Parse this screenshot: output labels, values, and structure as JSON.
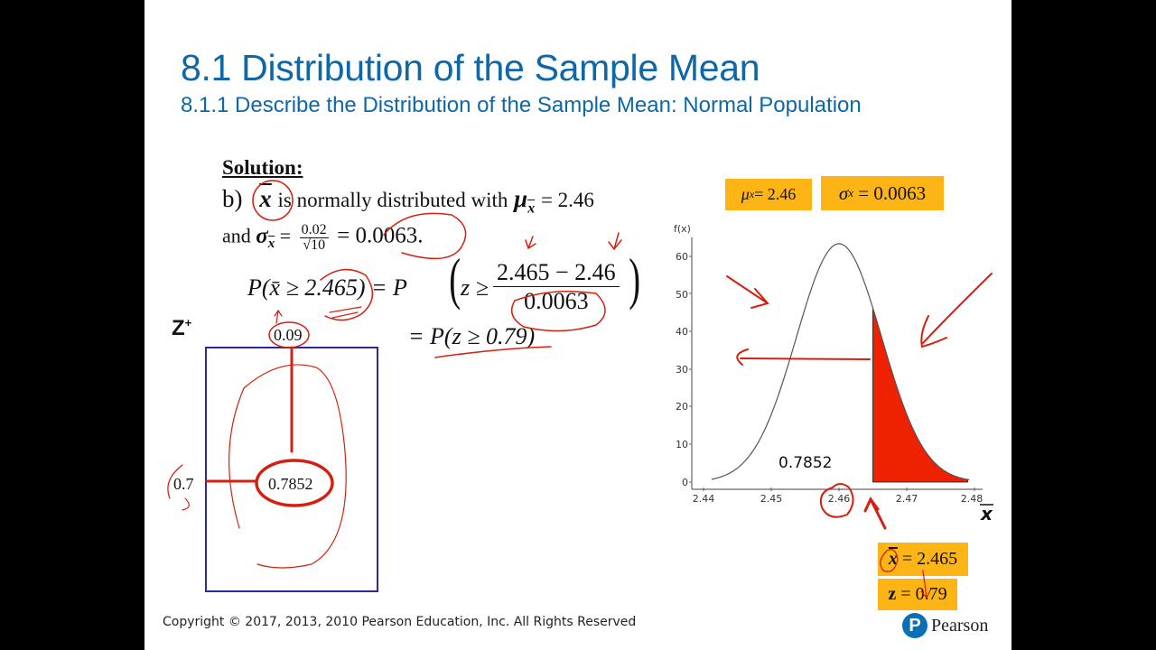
{
  "slide": {
    "title": "8.1 Distribution of the Sample Mean",
    "subtitle": "8.1.1 Describe the Distribution of the Sample Mean: Normal Population",
    "copyright": "Copyright © 2017, 2013, 2010 Pearson Education, Inc. All Rights Reserved",
    "brand": "Pearson",
    "brand_logo_letter": "P",
    "colors": {
      "title": "#0e67a6",
      "badge": "#fdb515",
      "shade": "#ee2200",
      "ink": "#d42010",
      "table_border": "#2b2aa0"
    }
  },
  "solution": {
    "heading": "Solution:",
    "part_label": "b)",
    "xbar": "x",
    "text1": "is normally distributed with",
    "mu_sym": "μ",
    "mu_sub": "x",
    "mu_value": "= 2.46",
    "and_text": "and",
    "sigma_sym": "σ",
    "sigma_sub": "x",
    "sigma_eq": "=",
    "frac_num": "0.02",
    "frac_den": "√10",
    "sigma_value": "= 0.0063.",
    "eq1_left": "P(x̄ ≥ 2.465) = P",
    "eq1_z": "z ≥",
    "eq1_num": "2.465 − 2.46",
    "eq1_den": "0.0063",
    "eq2": "= P(z ≥ 0.79)"
  },
  "ztable": {
    "label": "Z",
    "label_sup": "+",
    "col_header": "0.09",
    "row_header": "0.7",
    "cell_value": "0.7852"
  },
  "badges": {
    "mu": "μx = 2.46",
    "mu_sym": "μ",
    "mu_sub": "x",
    "mu_val": "= 2.46",
    "sigma_sym": "σ",
    "sigma_sub": "x",
    "sigma_val": "= 0.0063",
    "xbar_sym": "x",
    "xbar_val": "= 2.465",
    "z_sym": "z",
    "z_val": "= 0.79"
  },
  "chart_data": {
    "type": "area",
    "title": "",
    "ylabel": "f(x)",
    "xlabel": "x̄",
    "x_ticks": [
      2.44,
      2.45,
      2.46,
      2.47,
      2.48
    ],
    "y_ticks": [
      0,
      10,
      20,
      30,
      40,
      50,
      60
    ],
    "xlim": [
      2.44,
      2.48
    ],
    "ylim": [
      0,
      65
    ],
    "distribution": {
      "name": "Normal",
      "mean": 2.46,
      "sd": 0.0063
    },
    "shaded_region": {
      "from": 2.465,
      "to": 2.479,
      "side": "right"
    },
    "annotation": "0.7852",
    "grid": false
  }
}
